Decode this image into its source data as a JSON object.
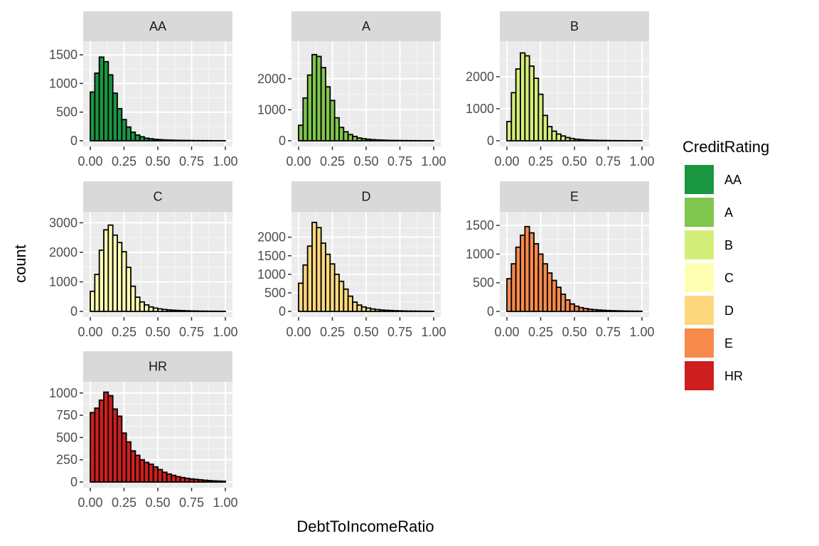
{
  "chart_data": {
    "type": "bar",
    "chart_kind": "faceted histogram",
    "xlabel": "DebtToIncomeRatio",
    "ylabel": "count",
    "legend": {
      "title": "CreditRating",
      "position": "right"
    },
    "grid": true,
    "x_ticks": [
      "0.00",
      "0.25",
      "0.50",
      "0.75",
      "1.00"
    ],
    "xlim": [
      0,
      1
    ],
    "bin_width": 0.0333,
    "facets": [
      {
        "name": "AA",
        "color": "#1A9641",
        "ylim": [
          0,
          1650
        ],
        "y_ticks": [
          0,
          500,
          1000,
          1500
        ],
        "values": [
          850,
          1180,
          1460,
          1380,
          1150,
          830,
          560,
          370,
          240,
          150,
          100,
          70,
          45,
          35,
          25,
          20,
          15,
          12,
          10,
          8,
          6,
          5,
          4,
          3,
          3,
          2,
          2,
          1,
          1,
          1
        ]
      },
      {
        "name": "A",
        "color": "#7FC64E",
        "ylim": [
          0,
          3050
        ],
        "y_ticks": [
          0,
          1000,
          2000
        ],
        "values": [
          500,
          1380,
          2120,
          2780,
          2720,
          2360,
          1740,
          1300,
          740,
          430,
          290,
          200,
          140,
          90,
          65,
          50,
          35,
          28,
          22,
          16,
          12,
          10,
          8,
          6,
          5,
          4,
          3,
          2,
          2,
          1
        ]
      },
      {
        "name": "B",
        "color": "#D4EE7A",
        "ylim": [
          0,
          2950
        ],
        "y_ticks": [
          0,
          1000,
          2000
        ],
        "values": [
          600,
          1500,
          2240,
          2740,
          2650,
          2330,
          1950,
          1450,
          790,
          440,
          300,
          210,
          150,
          100,
          70,
          50,
          36,
          27,
          20,
          15,
          12,
          9,
          7,
          5,
          4,
          3,
          3,
          2,
          1,
          1
        ]
      },
      {
        "name": "C",
        "color": "#FFFFB3",
        "ylim": [
          0,
          3200
        ],
        "y_ticks": [
          0,
          1000,
          2000,
          3000
        ],
        "values": [
          680,
          1250,
          2070,
          2760,
          2920,
          2580,
          2330,
          2020,
          1490,
          850,
          480,
          320,
          220,
          150,
          110,
          85,
          65,
          50,
          40,
          32,
          25,
          20,
          16,
          13,
          10,
          8,
          6,
          5,
          4,
          3
        ]
      },
      {
        "name": "D",
        "color": "#FDD87F",
        "ylim": [
          0,
          2550
        ],
        "y_ticks": [
          0,
          500,
          1000,
          1500,
          2000
        ],
        "values": [
          760,
          1250,
          1760,
          2400,
          2260,
          1840,
          1540,
          1280,
          1000,
          810,
          600,
          410,
          250,
          170,
          120,
          90,
          65,
          50,
          38,
          30,
          24,
          19,
          15,
          12,
          9,
          7,
          6,
          5,
          4,
          3
        ]
      },
      {
        "name": "E",
        "color": "#F68A4B",
        "ylim": [
          0,
          1650
        ],
        "y_ticks": [
          0,
          500,
          1000,
          1500
        ],
        "values": [
          570,
          830,
          1120,
          1330,
          1480,
          1370,
          1180,
          1000,
          830,
          670,
          540,
          420,
          300,
          200,
          130,
          90,
          65,
          50,
          38,
          30,
          24,
          19,
          15,
          12,
          10,
          8,
          6,
          5,
          4,
          3
        ]
      },
      {
        "name": "HR",
        "color": "#CE1E1E",
        "ylim": [
          0,
          1070
        ],
        "y_ticks": [
          0,
          250,
          500,
          750,
          1000
        ],
        "values": [
          780,
          830,
          920,
          1010,
          970,
          820,
          740,
          550,
          450,
          350,
          300,
          250,
          220,
          200,
          170,
          140,
          110,
          90,
          75,
          60,
          50,
          42,
          35,
          30,
          25,
          20,
          16,
          13,
          11,
          9
        ]
      }
    ]
  }
}
